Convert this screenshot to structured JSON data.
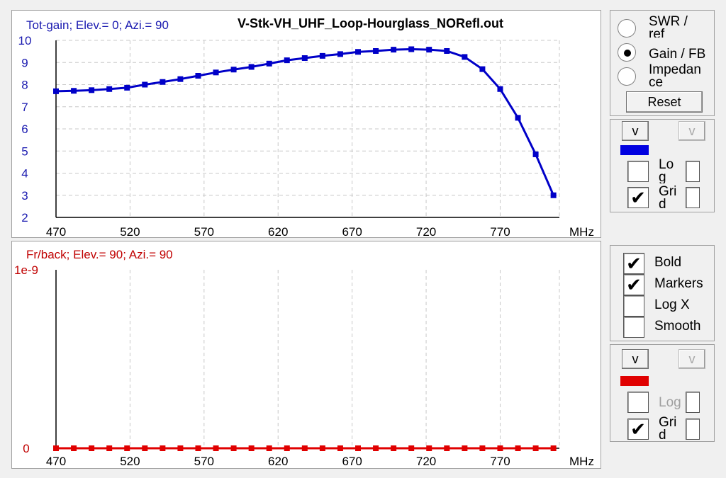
{
  "top_chart": {
    "title": "Tot-gain; Elev.= 0; Azi.= 90",
    "file_title": "V-Stk-VH_UHF_Loop-Hourglass_NORefl.out",
    "x_unit": "MHz",
    "line_color": "#0000c8"
  },
  "bottom_chart": {
    "title": "Fr/back; Elev.= 90; Azi.= 90",
    "x_unit": "MHz",
    "line_color": "#e00000"
  },
  "chart_data": [
    {
      "type": "line",
      "title": "Tot-gain; Elev.= 0; Azi.= 90",
      "xlabel": "MHz",
      "ylabel": "",
      "xlim": [
        470,
        810
      ],
      "ylim": [
        2,
        10
      ],
      "x_ticks": [
        "470",
        "520",
        "570",
        "620",
        "670",
        "720",
        "770"
      ],
      "y_ticks": [
        "2",
        "3",
        "4",
        "5",
        "6",
        "7",
        "8",
        "9",
        "10"
      ],
      "grid": true,
      "series": [
        {
          "x": [
            470,
            482,
            494,
            506,
            518,
            530,
            542,
            554,
            566,
            578,
            590,
            602,
            614,
            626,
            638,
            650,
            662,
            674,
            686,
            698,
            710,
            722,
            734,
            746,
            758,
            770,
            782,
            794,
            806
          ],
          "values": [
            7.7,
            7.72,
            7.75,
            7.8,
            7.86,
            8.0,
            8.12,
            8.25,
            8.4,
            8.55,
            8.68,
            8.8,
            8.95,
            9.1,
            9.2,
            9.3,
            9.38,
            9.48,
            9.52,
            9.58,
            9.6,
            9.58,
            9.52,
            9.25,
            8.7,
            7.8,
            6.5,
            4.85,
            3.0
          ]
        }
      ]
    },
    {
      "type": "line",
      "title": "Fr/back; Elev.= 90; Azi.= 90",
      "xlabel": "MHz",
      "ylabel": "",
      "xlim": [
        470,
        810
      ],
      "ylim": [
        0,
        1e-09
      ],
      "x_ticks": [
        "470",
        "520",
        "570",
        "620",
        "670",
        "720",
        "770"
      ],
      "y_ticks": [
        "0",
        "1e-9"
      ],
      "grid": true,
      "series": [
        {
          "x": [
            470,
            482,
            494,
            506,
            518,
            530,
            542,
            554,
            566,
            578,
            590,
            602,
            614,
            626,
            638,
            650,
            662,
            674,
            686,
            698,
            710,
            722,
            734,
            746,
            758,
            770,
            782,
            794,
            806
          ],
          "values": [
            0,
            0,
            0,
            0,
            0,
            0,
            0,
            0,
            0,
            0,
            0,
            0,
            0,
            0,
            0,
            0,
            0,
            0,
            0,
            0,
            0,
            0,
            0,
            0,
            0,
            0,
            0,
            0,
            0
          ]
        }
      ]
    }
  ],
  "controls_top": {
    "radios": [
      {
        "label_line1": "SWR /",
        "label_line2": "ref",
        "selected": false
      },
      {
        "label_line1": "Gain / FB",
        "label_line2": "",
        "selected": true
      },
      {
        "label_line1": "Impedan",
        "label_line2": "ce",
        "selected": false
      }
    ],
    "reset_label": "Reset",
    "series_color": "#0000e0",
    "arrow_button_label": "v",
    "arrow_button_disabled_label": "v",
    "log_label_line1": "Lo",
    "log_label_line2": "g",
    "grid_label_line1": "Gri",
    "grid_label_line2": "d",
    "log_checked": false,
    "grid_checked": true,
    "check_mark": "✔"
  },
  "controls_mid": {
    "bold_label": "Bold",
    "markers_label": "Markers",
    "logx_label": "Log X",
    "smooth_label": "Smooth",
    "bold_checked": true,
    "markers_checked": true,
    "logx_checked": false,
    "smooth_checked": false
  },
  "controls_bottom": {
    "series_color": "#e00000",
    "arrow_button_label": "v",
    "arrow_button_disabled_label": "v",
    "log_label": "Log",
    "grid_label_line1": "Gri",
    "grid_label_line2": "d",
    "log_checked": false,
    "grid_checked": true
  }
}
